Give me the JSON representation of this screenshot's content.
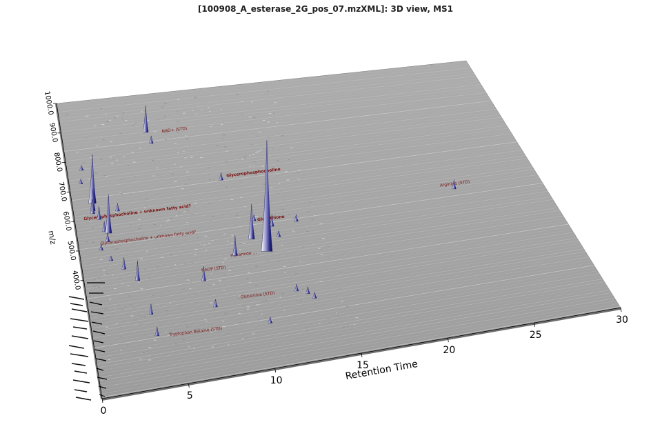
{
  "window": {
    "title": "[100908_A_esterase_2G_pos_07.mzXML]: 3D view, MS1"
  },
  "chart_data": {
    "type": "3d-surface",
    "xlabel": "Retention Time",
    "ylabel": "m/z",
    "xlim": [
      0,
      30
    ],
    "ylim": [
      0,
      1000
    ],
    "x_ticks": [
      "0",
      "5",
      "10",
      "15",
      "20",
      "25",
      "30"
    ],
    "y_ticks": [
      "400.0",
      "500.0",
      "600.0",
      "700.0",
      "800.0",
      "900.0",
      "1000.0"
    ],
    "peaks": [
      {
        "rt": 11.6,
        "mz": 408,
        "height": 160
      },
      {
        "rt": 10.9,
        "mz": 458,
        "height": 50
      },
      {
        "rt": 9.6,
        "mz": 410,
        "height": 28
      },
      {
        "rt": 12.4,
        "mz": 492,
        "height": 16
      },
      {
        "rt": 5.9,
        "mz": 872,
        "height": 38
      },
      {
        "rt": 6.1,
        "mz": 832,
        "height": 10
      },
      {
        "rt": 1.35,
        "mz": 655,
        "height": 70
      },
      {
        "rt": 1.3,
        "mz": 630,
        "height": 30
      },
      {
        "rt": 1.25,
        "mz": 620,
        "height": 20
      },
      {
        "rt": 1.6,
        "mz": 598,
        "height": 18
      },
      {
        "rt": 2.05,
        "mz": 548,
        "height": 55
      },
      {
        "rt": 1.8,
        "mz": 555,
        "height": 14
      },
      {
        "rt": 1.9,
        "mz": 520,
        "height": 12
      },
      {
        "rt": 2.9,
        "mz": 618,
        "height": 10
      },
      {
        "rt": 10.1,
        "mz": 676,
        "height": 10
      },
      {
        "rt": 11.4,
        "mz": 520,
        "height": 8
      },
      {
        "rt": 12.6,
        "mz": 452,
        "height": 8
      },
      {
        "rt": 14.0,
        "mz": 497,
        "height": 9
      },
      {
        "rt": 24.5,
        "mz": 532,
        "height": 12
      },
      {
        "rt": 1.4,
        "mz": 495,
        "height": 7
      },
      {
        "rt": 2.6,
        "mz": 420,
        "height": 16
      },
      {
        "rt": 3.3,
        "mz": 375,
        "height": 28
      },
      {
        "rt": 3.7,
        "mz": 255,
        "height": 14
      },
      {
        "rt": 3.8,
        "mz": 180,
        "height": 12
      },
      {
        "rt": 7.3,
        "mz": 340,
        "height": 20
      },
      {
        "rt": 7.6,
        "mz": 245,
        "height": 10
      },
      {
        "rt": 10.5,
        "mz": 160,
        "height": 8
      },
      {
        "rt": 12.6,
        "mz": 255,
        "height": 9
      },
      {
        "rt": 13.2,
        "mz": 240,
        "height": 9
      },
      {
        "rt": 13.5,
        "mz": 220,
        "height": 8
      },
      {
        "rt": 0.8,
        "mz": 725,
        "height": 6
      },
      {
        "rt": 1.0,
        "mz": 770,
        "height": 6
      },
      {
        "rt": 1.9,
        "mz": 455,
        "height": 6
      }
    ],
    "annotations": [
      {
        "text": "Glycerophosphocholine + unknown fatty acid?",
        "rt": 0.6,
        "mz": 600,
        "bold": true
      },
      {
        "text": "Glycerophosphocholine + unknown fatty acid?",
        "rt": 1.4,
        "mz": 510,
        "bold": false
      },
      {
        "text": "Glycerophosphocholine",
        "rt": 10.5,
        "mz": 682,
        "bold": true
      },
      {
        "text": "NAD+ (STD)",
        "rt": 7.0,
        "mz": 862,
        "bold": false
      },
      {
        "text": "Glutathione",
        "rt": 11.6,
        "mz": 515,
        "bold": true
      },
      {
        "text": "Hexamide ...",
        "rt": 9.3,
        "mz": 405,
        "bold": false
      },
      {
        "text": "NADP (STD)",
        "rt": 7.3,
        "mz": 370,
        "bold": false
      },
      {
        "text": "Arginine (STD)",
        "rt": 23.7,
        "mz": 545,
        "bold": false
      },
      {
        "text": "Tryptophan Betaine (STD)",
        "rt": 4.5,
        "mz": 170,
        "bold": false
      },
      {
        "text": "Glutamine (STD)",
        "rt": 9.2,
        "mz": 258,
        "bold": false
      }
    ]
  }
}
